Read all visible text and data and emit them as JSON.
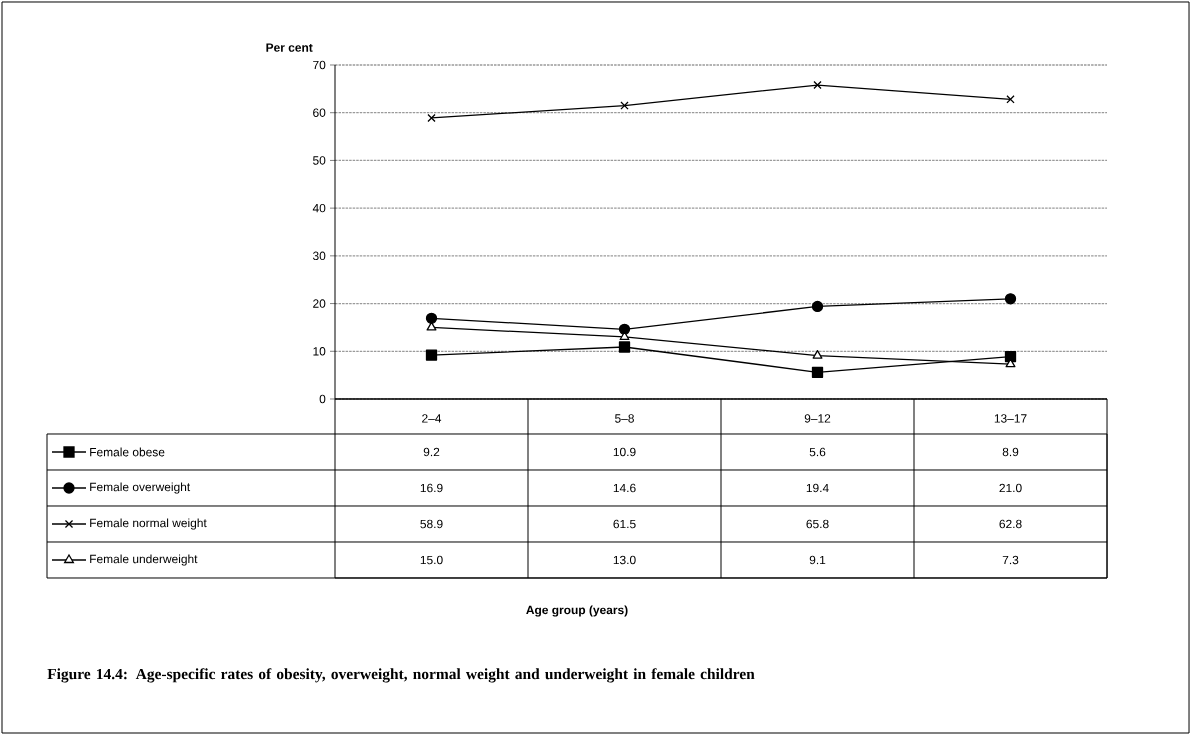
{
  "chart_data": {
    "type": "line",
    "title": "Figure 14.4: Age-specific rates of obesity, overweight, normal weight and underweight in female children",
    "ylabel": "Per cent",
    "annotations": [
      "Age group (years)"
    ],
    "categories": [
      "2–4",
      "5–8",
      "9–12",
      "13–17"
    ],
    "series": [
      {
        "name": "Female obese",
        "color": "#000000",
        "marker": "square",
        "values": [
          9.2,
          10.9,
          5.6,
          8.9
        ],
        "value_labels": [
          "9.2",
          "10.9",
          "5.6",
          "8.9"
        ]
      },
      {
        "name": "Female overweight",
        "color": "#000000",
        "marker": "circle",
        "values": [
          16.9,
          14.6,
          19.4,
          21.0
        ],
        "value_labels": [
          "16.9",
          "14.6",
          "19.4",
          "21.0"
        ]
      },
      {
        "name": "Female normal weight",
        "color": "#000000",
        "marker": "cross",
        "values": [
          58.9,
          61.5,
          65.8,
          62.8
        ],
        "value_labels": [
          "58.9",
          "61.5",
          "65.8",
          "62.8"
        ]
      },
      {
        "name": "Female underweight",
        "color": "#000000",
        "marker": "triangle",
        "values": [
          15.0,
          13.0,
          9.1,
          7.3
        ],
        "value_labels": [
          "15.0",
          "13.0",
          "9.1",
          "7.3"
        ]
      }
    ],
    "ylim": [
      0,
      70
    ],
    "yticks": [
      0,
      10,
      20,
      30,
      40,
      50,
      60,
      70
    ],
    "grid": "y",
    "legend": "bottom left",
    "line_style": "solid"
  }
}
